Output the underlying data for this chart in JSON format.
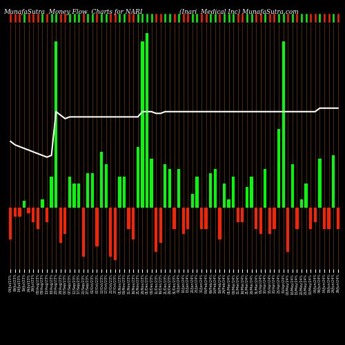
{
  "title_left": "MunafaSutra  Money Flow  Charts for NARI",
  "title_right": "(Inari  Medical Inc) MunafaSutra.com",
  "bg_color": "#000000",
  "line_color": "#ffffff",
  "grid_color": "#8B4500",
  "green_col": "#00ff00",
  "red_col": "#ff2200",
  "dates": [
    "04/Jul/23%",
    "09/Jul/23%",
    "14/Jul/23%",
    "19/Jul/23%",
    "24/Jul/23%",
    "29/Jul/23%",
    "03/Aug/23%",
    "08/Aug/23%",
    "13/Aug/23%",
    "18/Aug/23%",
    "23/Aug/23%",
    "28/Aug/23%",
    "02/Sep/23%",
    "07/Sep/23%",
    "12/Sep/23%",
    "17/Sep/23%",
    "22/Sep/23%",
    "27/Sep/23%",
    "02/Oct/23%",
    "07/Oct/23%",
    "12/Oct/23%",
    "17/Oct/23%",
    "22/Oct/23%",
    "27/Oct/23%",
    "01/Nov/23%",
    "06/Nov/23%",
    "11/Nov/23%",
    "16/Nov/23%",
    "21/Nov/23%",
    "26/Nov/23%",
    "01/Dec/23%",
    "06/Dec/23%",
    "11/Dec/23%",
    "16/Dec/23%",
    "21/Dec/23%",
    "26/Dec/23%",
    "31/Dec/23%",
    "05/Jan/24%",
    "10/Jan/24%",
    "15/Jan/24%",
    "20/Jan/24%",
    "25/Jan/24%",
    "30/Jan/24%",
    "04/Feb/24%",
    "09/Feb/24%",
    "14/Feb/24%",
    "19/Feb/24%",
    "24/Feb/24%",
    "01/Mar/24%",
    "06/Mar/24%",
    "11/Mar/24%",
    "16/Mar/24%",
    "21/Mar/24%",
    "26/Mar/24%",
    "31/Mar/24%",
    "05/Apr/24%",
    "10/Apr/24%",
    "15/Apr/24%",
    "20/Apr/24%",
    "25/Apr/24%",
    "30/Apr/24%",
    "05/May/24%",
    "10/May/24%",
    "15/May/24%",
    "20/May/24%",
    "25/May/24%",
    "30/May/24%",
    "04/Jun/24%",
    "09/Jun/24%",
    "14/Jun/24%",
    "19/Jun/24%",
    "24/Jun/24%",
    "29/Jun/24%"
  ],
  "bar_heights": [
    -18,
    -5,
    -5,
    4,
    -3,
    -8,
    -12,
    5,
    -8,
    18,
    95,
    -20,
    -15,
    18,
    14,
    14,
    -28,
    20,
    20,
    -22,
    32,
    25,
    -28,
    -30,
    18,
    18,
    -12,
    -18,
    35,
    95,
    100,
    28,
    -25,
    -20,
    25,
    22,
    -12,
    22,
    -15,
    -12,
    8,
    18,
    -12,
    -12,
    20,
    22,
    -18,
    14,
    5,
    18,
    -8,
    -8,
    12,
    18,
    -12,
    -15,
    22,
    -15,
    -12,
    45,
    95,
    -25,
    25,
    -12,
    5,
    14,
    -12,
    -8,
    28,
    -12,
    -12,
    30,
    -12
  ],
  "line_vals": [
    38,
    36,
    35,
    34,
    33,
    32,
    31,
    30,
    29,
    30,
    55,
    53,
    51,
    52,
    52,
    52,
    52,
    52,
    52,
    52,
    52,
    52,
    52,
    52,
    52,
    52,
    52,
    52,
    52,
    55,
    55,
    55,
    54,
    54,
    55,
    55,
    55,
    55,
    55,
    55,
    55,
    55,
    55,
    55,
    55,
    55,
    55,
    55,
    55,
    55,
    55,
    55,
    55,
    55,
    55,
    55,
    55,
    55,
    55,
    55,
    55,
    55,
    55,
    55,
    55,
    55,
    55,
    55,
    57,
    57,
    57,
    57,
    57
  ],
  "ylim_min": -35,
  "ylim_max": 105
}
